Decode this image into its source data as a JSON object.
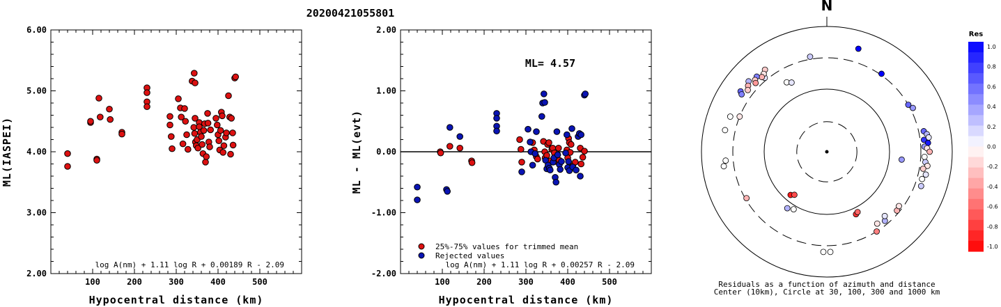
{
  "title": "20200421055801",
  "colors": {
    "red": "#dd1111",
    "blue": "#0a14b4",
    "axis": "#000000"
  },
  "chart_data": [
    {
      "type": "scatter",
      "xlabel": "Hypocentral distance (km)",
      "ylabel": "ML(IASPEI)",
      "xlim": [
        0,
        600
      ],
      "ylim": [
        2.0,
        6.0
      ],
      "xticks": [
        "100",
        "200",
        "300",
        "400",
        "500"
      ],
      "yticks": [
        "2.00",
        "3.00",
        "4.00",
        "5.00",
        "6.00"
      ],
      "formula": "log A(nm) + 1.11 log R + 0.00189 R - 2.09",
      "series": [
        {
          "color": "red",
          "points": [
            [
              40,
              3.97
            ],
            [
              40,
              3.76
            ],
            [
              95,
              4.48
            ],
            [
              95,
              4.5
            ],
            [
              110,
              3.88
            ],
            [
              110,
              3.86
            ],
            [
              115,
              4.88
            ],
            [
              118,
              4.57
            ],
            [
              140,
              4.7
            ],
            [
              142,
              4.53
            ],
            [
              170,
              4.32
            ],
            [
              170,
              4.29
            ],
            [
              230,
              5.05
            ],
            [
              230,
              4.97
            ],
            [
              230,
              4.82
            ],
            [
              230,
              4.74
            ],
            [
              285,
              4.58
            ],
            [
              285,
              4.44
            ],
            [
              288,
              4.25
            ],
            [
              290,
              4.05
            ],
            [
              305,
              4.87
            ],
            [
              310,
              4.72
            ],
            [
              312,
              4.57
            ],
            [
              316,
              4.13
            ],
            [
              320,
              4.71
            ],
            [
              322,
              4.5
            ],
            [
              325,
              4.28
            ],
            [
              328,
              4.04
            ],
            [
              338,
              5.16
            ],
            [
              343,
              5.29
            ],
            [
              345,
              5.13
            ],
            [
              345,
              4.55
            ],
            [
              342,
              4.4
            ],
            [
              344,
              4.3
            ],
            [
              346,
              4.16
            ],
            [
              348,
              4.1
            ],
            [
              350,
              4.2
            ],
            [
              352,
              4.06
            ],
            [
              355,
              4.48
            ],
            [
              355,
              4.41
            ],
            [
              358,
              4.32
            ],
            [
              360,
              4.25
            ],
            [
              362,
              4.12
            ],
            [
              364,
              3.97
            ],
            [
              366,
              4.35
            ],
            [
              368,
              4.46
            ],
            [
              370,
              3.83
            ],
            [
              372,
              3.92
            ],
            [
              375,
              4.63
            ],
            [
              376,
              4.47
            ],
            [
              378,
              4.16
            ],
            [
              380,
              4.08
            ],
            [
              382,
              4.36
            ],
            [
              395,
              4.55
            ],
            [
              398,
              4.44
            ],
            [
              400,
              4.28
            ],
            [
              402,
              4.18
            ],
            [
              404,
              4.03
            ],
            [
              406,
              4.35
            ],
            [
              408,
              4.65
            ],
            [
              410,
              4.59
            ],
            [
              412,
              3.99
            ],
            [
              414,
              4.1
            ],
            [
              418,
              4.24
            ],
            [
              420,
              4.31
            ],
            [
              425,
              4.92
            ],
            [
              428,
              4.57
            ],
            [
              430,
              3.96
            ],
            [
              432,
              4.55
            ],
            [
              435,
              4.31
            ],
            [
              436,
              4.11
            ],
            [
              440,
              5.21
            ],
            [
              442,
              5.23
            ]
          ]
        }
      ]
    },
    {
      "type": "scatter",
      "xlabel": "Hypocentral distance (km)",
      "ylabel": "ML - ML(evt)",
      "xlim": [
        0,
        600
      ],
      "ylim": [
        -2.0,
        2.0
      ],
      "xticks": [
        "100",
        "200",
        "300",
        "400",
        "500"
      ],
      "yticks": [
        "-2.00",
        "-1.00",
        "0.00",
        "1.00",
        "2.00"
      ],
      "ml_label": "ML= 4.57",
      "formula": "log A(nm) + 1.11 log R + 0.00257 R - 2.09",
      "legend": [
        "25%-75% values for trimmed mean",
        "Rejected values"
      ],
      "series": [
        {
          "name": "25%-75% values for trimmed mean",
          "color": "red",
          "points": [
            [
              95,
              0.0
            ],
            [
              96,
              -0.02
            ],
            [
              118,
              0.09
            ],
            [
              142,
              0.06
            ],
            [
              170,
              -0.15
            ],
            [
              171,
              -0.18
            ],
            [
              285,
              0.2
            ],
            [
              288,
              0.04
            ],
            [
              290,
              -0.17
            ],
            [
              316,
              0.15
            ],
            [
              320,
              0.03
            ],
            [
              325,
              -0.08
            ],
            [
              328,
              -0.12
            ],
            [
              342,
              0.17
            ],
            [
              345,
              0.0
            ],
            [
              346,
              -0.1
            ],
            [
              350,
              -0.06
            ],
            [
              352,
              0.12
            ],
            [
              355,
              0.15
            ],
            [
              358,
              -0.15
            ],
            [
              362,
              0.04
            ],
            [
              364,
              0.06
            ],
            [
              368,
              -0.02
            ],
            [
              372,
              -0.16
            ],
            [
              378,
              0.06
            ],
            [
              380,
              -0.14
            ],
            [
              398,
              0.03
            ],
            [
              400,
              -0.1
            ],
            [
              402,
              0.22
            ],
            [
              404,
              0.15
            ],
            [
              406,
              -0.01
            ],
            [
              408,
              0.12
            ],
            [
              412,
              -0.23
            ],
            [
              418,
              -0.17
            ],
            [
              420,
              -0.3
            ],
            [
              430,
              0.06
            ],
            [
              432,
              -0.2
            ],
            [
              436,
              -0.09
            ],
            [
              440,
              0.01
            ]
          ]
        },
        {
          "name": "Rejected values",
          "color": "blue",
          "points": [
            [
              40,
              -0.58
            ],
            [
              40,
              -0.79
            ],
            [
              110,
              -0.62
            ],
            [
              112,
              -0.65
            ],
            [
              118,
              0.4
            ],
            [
              142,
              0.25
            ],
            [
              230,
              0.63
            ],
            [
              230,
              0.55
            ],
            [
              230,
              0.42
            ],
            [
              230,
              0.34
            ],
            [
              290,
              -0.33
            ],
            [
              305,
              0.37
            ],
            [
              310,
              0.16
            ],
            [
              312,
              0.0
            ],
            [
              316,
              -0.22
            ],
            [
              322,
              -0.03
            ],
            [
              325,
              0.33
            ],
            [
              338,
              0.58
            ],
            [
              340,
              0.8
            ],
            [
              343,
              0.95
            ],
            [
              345,
              0.81
            ],
            [
              347,
              -0.14
            ],
            [
              350,
              -0.28
            ],
            [
              353,
              -0.22
            ],
            [
              356,
              -0.27
            ],
            [
              358,
              -0.3
            ],
            [
              365,
              -0.17
            ],
            [
              367,
              -0.1
            ],
            [
              370,
              -0.42
            ],
            [
              372,
              -0.5
            ],
            [
              374,
              0.33
            ],
            [
              376,
              -0.05
            ],
            [
              380,
              -0.21
            ],
            [
              382,
              -0.29
            ],
            [
              385,
              -0.16
            ],
            [
              395,
              -0.02
            ],
            [
              398,
              0.28
            ],
            [
              400,
              -0.26
            ],
            [
              402,
              -0.16
            ],
            [
              404,
              -0.31
            ],
            [
              410,
              0.38
            ],
            [
              412,
              -0.25
            ],
            [
              420,
              -0.3
            ],
            [
              425,
              0.25
            ],
            [
              428,
              0.3
            ],
            [
              430,
              -0.4
            ],
            [
              432,
              0.28
            ],
            [
              440,
              0.93
            ],
            [
              442,
              0.95
            ]
          ]
        }
      ]
    },
    {
      "type": "polar",
      "north_label": "N",
      "caption_line1": "Residuals as a function of azimuth and distance",
      "caption_line2": "Center (10km), Circle at 30, 100, 300 and 1000 km",
      "colorbar_title": "Res",
      "colorbar_ticks": [
        "1.0",
        "0.8",
        "0.6",
        "0.4",
        "0.2",
        "0.0",
        "-0.2",
        "-0.4",
        "-0.6",
        "-0.8",
        "-1.0"
      ],
      "points": [
        {
          "az": 17,
          "r": 0.86,
          "res": 1.0
        },
        {
          "az": 35,
          "r": 0.76,
          "res": 1.0
        },
        {
          "az": -10,
          "r": 0.77,
          "res": 0.2
        },
        {
          "az": -40,
          "r": 0.77,
          "res": 0.1
        },
        {
          "az": -37,
          "r": 0.82,
          "res": -0.2
        },
        {
          "az": -39,
          "r": 0.8,
          "res": -0.1
        },
        {
          "az": -41,
          "r": 0.79,
          "res": -0.3
        },
        {
          "az": -43,
          "r": 0.82,
          "res": 0.5
        },
        {
          "az": -45,
          "r": 0.81,
          "res": -0.2
        },
        {
          "az": -46,
          "r": 0.79,
          "res": -0.4
        },
        {
          "az": -48,
          "r": 0.84,
          "res": 0.3
        },
        {
          "az": -50,
          "r": 0.82,
          "res": -0.3
        },
        {
          "az": -52,
          "r": 0.8,
          "res": -0.2
        },
        {
          "az": -55,
          "r": 0.84,
          "res": 0.6
        },
        {
          "az": -56,
          "r": 0.82,
          "res": 0.5
        },
        {
          "az": -30,
          "r": 0.64,
          "res": 0.0
        },
        {
          "az": -27,
          "r": 0.62,
          "res": 0.1
        },
        {
          "az": -68,
          "r": 0.75,
          "res": -0.1
        },
        {
          "az": -70,
          "r": 0.82,
          "res": 0.0
        },
        {
          "az": -78,
          "r": 0.83,
          "res": 0.0
        },
        {
          "az": -95,
          "r": 0.81,
          "res": 0.0
        },
        {
          "az": -98,
          "r": 0.83,
          "res": 0.0
        },
        {
          "az": -120,
          "r": 0.74,
          "res": -0.3
        },
        {
          "az": -145,
          "r": 0.55,
          "res": 0.3
        },
        {
          "az": -150,
          "r": 0.53,
          "res": 0.0
        },
        {
          "az": -178,
          "r": 0.8,
          "res": 0.0
        },
        {
          "az": 178,
          "r": 0.8,
          "res": 0.0
        },
        {
          "az": 148,
          "r": 0.75,
          "res": -0.5
        },
        {
          "az": 145,
          "r": 0.7,
          "res": -0.1
        },
        {
          "az": 140,
          "r": 0.72,
          "res": 0.3
        },
        {
          "az": 138,
          "r": 0.69,
          "res": 0.1
        },
        {
          "az": 130,
          "r": 0.73,
          "res": -0.3
        },
        {
          "az": 127,
          "r": 0.72,
          "res": -0.1
        },
        {
          "az": 155,
          "r": 0.55,
          "res": -0.8
        },
        {
          "az": 153,
          "r": 0.54,
          "res": -0.6
        },
        {
          "az": -140,
          "r": 0.45,
          "res": -0.9
        },
        {
          "az": -143,
          "r": 0.43,
          "res": -0.7
        },
        {
          "az": 60,
          "r": 0.75,
          "res": 0.6
        },
        {
          "az": 63,
          "r": 0.77,
          "res": 0.4
        },
        {
          "az": 78,
          "r": 0.79,
          "res": 0.6
        },
        {
          "az": 80,
          "r": 0.81,
          "res": 0.3
        },
        {
          "az": 82,
          "r": 0.82,
          "res": 0.1
        },
        {
          "az": 83,
          "r": 0.78,
          "res": 0.8
        },
        {
          "az": 85,
          "r": 0.81,
          "res": 0.9
        },
        {
          "az": 87,
          "r": 0.78,
          "res": 0.4
        },
        {
          "az": 88,
          "r": 0.8,
          "res": -0.1
        },
        {
          "az": 90,
          "r": 0.82,
          "res": -0.3
        },
        {
          "az": 93,
          "r": 0.78,
          "res": 0.0
        },
        {
          "az": 96,
          "r": 0.79,
          "res": 0.2
        },
        {
          "az": 98,
          "r": 0.81,
          "res": -0.1
        },
        {
          "az": 100,
          "r": 0.78,
          "res": -0.2
        },
        {
          "az": 103,
          "r": 0.81,
          "res": 0.1
        },
        {
          "az": 106,
          "r": 0.79,
          "res": 0.0
        },
        {
          "az": 110,
          "r": 0.8,
          "res": 0.2
        },
        {
          "az": 96,
          "r": 0.6,
          "res": 0.4
        }
      ]
    }
  ]
}
